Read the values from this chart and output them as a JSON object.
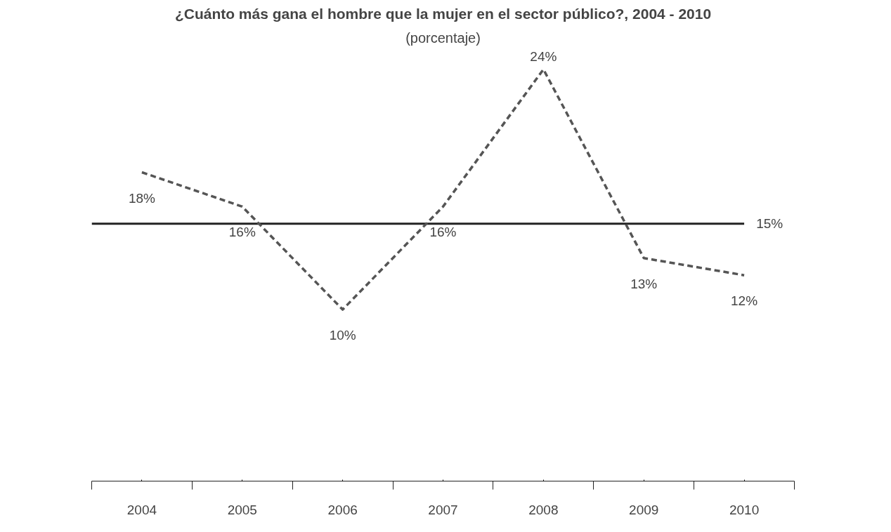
{
  "chart_data": {
    "type": "line",
    "title": "¿Cuánto más gana el hombre que la mujer en el sector público?, 2004 - 2010",
    "subtitle": "(porcentaje)",
    "categories": [
      "2004",
      "2005",
      "2006",
      "2007",
      "2008",
      "2009",
      "2010"
    ],
    "series": [
      {
        "color": "#555555",
        "values": [
          18,
          16,
          10,
          16,
          24,
          13,
          12
        ],
        "value_labels": [
          "18%",
          "16%",
          "10%",
          "16%",
          "24%",
          "13%",
          "12%"
        ]
      }
    ],
    "line_style": "dashed",
    "marker": "none",
    "grid": false,
    "tick_labels": "x",
    "ref_lines": [
      {
        "axis": "y",
        "value": 15,
        "label": "15%",
        "color": "#222222",
        "line_style": "solid"
      }
    ]
  }
}
